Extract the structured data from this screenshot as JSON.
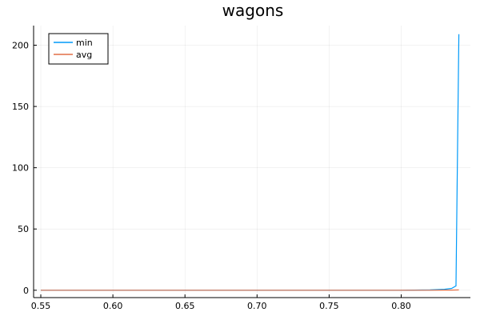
{
  "chart_data": {
    "type": "line",
    "title": "wagons",
    "xlabel": "",
    "ylabel": "",
    "xlim": [
      0.545,
      0.848
    ],
    "ylim": [
      -6,
      216
    ],
    "xticks": [
      0.55,
      0.6,
      0.65,
      0.7,
      0.75,
      0.8
    ],
    "xtick_labels": [
      "0.55",
      "0.60",
      "0.65",
      "0.70",
      "0.75",
      "0.80"
    ],
    "yticks": [
      0,
      50,
      100,
      150,
      200
    ],
    "ytick_labels": [
      "0",
      "50",
      "100",
      "150",
      "200"
    ],
    "grid": true,
    "legend_position": "top-left",
    "series": [
      {
        "name": "min",
        "color": "#009af9",
        "x": [
          0.55,
          0.6,
          0.65,
          0.7,
          0.75,
          0.8,
          0.82,
          0.83,
          0.835,
          0.838,
          0.84
        ],
        "y": [
          0,
          0,
          0,
          0,
          0,
          0,
          0.3,
          0.8,
          1.5,
          3.5,
          209
        ]
      },
      {
        "name": "avg",
        "color": "#e26f46",
        "x": [
          0.55,
          0.6,
          0.65,
          0.7,
          0.75,
          0.8,
          0.82,
          0.83,
          0.835,
          0.838,
          0.84
        ],
        "y": [
          0,
          0,
          0,
          0,
          0,
          0,
          0,
          0.1,
          0.1,
          0.2,
          0.3
        ]
      }
    ]
  }
}
